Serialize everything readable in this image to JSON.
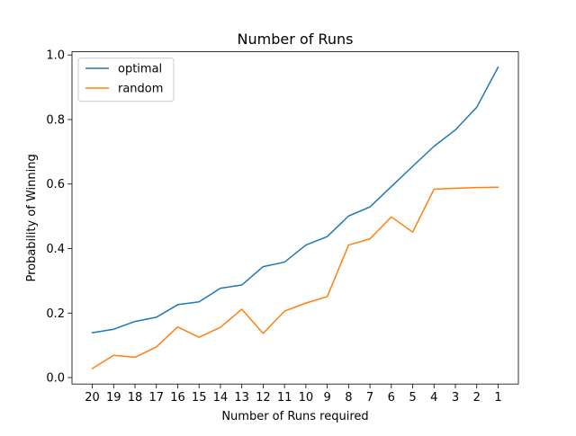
{
  "chart_data": {
    "type": "line",
    "title": "Number of Runs",
    "xlabel": "Number of Runs required",
    "ylabel": "Probability of Winning",
    "categories": [
      "20",
      "19",
      "18",
      "17",
      "16",
      "15",
      "14",
      "13",
      "12",
      "11",
      "10",
      "9",
      "8",
      "7",
      "6",
      "5",
      "4",
      "3",
      "2",
      "1"
    ],
    "ylim": [
      -0.02,
      1.01
    ],
    "y_ticks": [
      "0.0",
      "0.2",
      "0.4",
      "0.6",
      "0.8",
      "1.0"
    ],
    "legend_placement": "top-left",
    "grid": false,
    "series": [
      {
        "name": "optimal",
        "color": "#1f77b4",
        "values": [
          0.139,
          0.15,
          0.174,
          0.187,
          0.226,
          0.235,
          0.277,
          0.287,
          0.344,
          0.358,
          0.411,
          0.437,
          0.501,
          0.529,
          0.592,
          0.655,
          0.717,
          0.768,
          0.838,
          0.962
        ]
      },
      {
        "name": "random",
        "color": "#ff7f0e",
        "values": [
          0.028,
          0.069,
          0.063,
          0.095,
          0.157,
          0.125,
          0.156,
          0.212,
          0.137,
          0.206,
          0.231,
          0.251,
          0.411,
          0.43,
          0.498,
          0.451,
          0.584,
          0.587,
          0.589,
          0.59
        ]
      }
    ]
  }
}
